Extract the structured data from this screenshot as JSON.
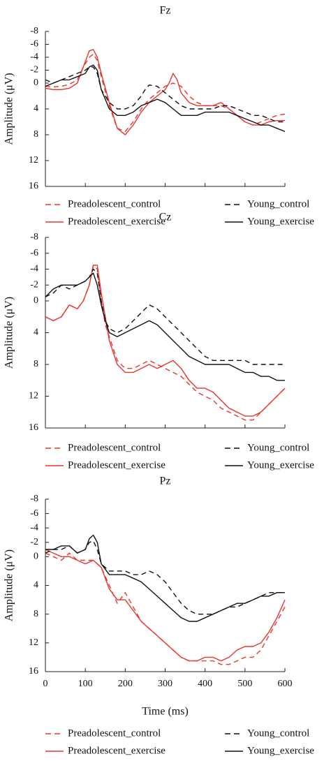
{
  "chart_data": [
    {
      "type": "line",
      "title": "Fz",
      "xlabel": "",
      "ylabel": "Amplitude (μV)",
      "ylim": [
        16,
        -8
      ],
      "y_inverted": true,
      "xlim": [
        0,
        600
      ],
      "yticks": [
        -8,
        -6,
        -4,
        -2,
        0,
        4,
        8,
        12,
        16
      ],
      "xticks": [],
      "series": [
        {
          "name": "Preadolescent_control",
          "color": "#e8352e",
          "dash": "dashed",
          "x": [
            0,
            20,
            40,
            60,
            80,
            95,
            110,
            120,
            130,
            140,
            160,
            180,
            200,
            220,
            240,
            260,
            280,
            300,
            320,
            340,
            360,
            380,
            400,
            420,
            440,
            460,
            480,
            500,
            520,
            540,
            560,
            580,
            600
          ],
          "y": [
            0.5,
            0.6,
            0.5,
            0.2,
            -0.5,
            -2.5,
            -4.0,
            -4.5,
            -3.5,
            -1.0,
            3.5,
            7.0,
            7.5,
            6.0,
            4.0,
            2.5,
            1.5,
            0.5,
            0.0,
            0.5,
            2.0,
            3.0,
            3.5,
            3.5,
            3.5,
            4.0,
            5.0,
            6.0,
            6.5,
            6.0,
            5.5,
            5.0,
            4.8
          ]
        },
        {
          "name": "Preadolescent_exercise",
          "color": "#e8352e",
          "dash": "solid",
          "x": [
            0,
            20,
            40,
            60,
            80,
            95,
            110,
            120,
            130,
            140,
            160,
            180,
            200,
            220,
            240,
            260,
            280,
            300,
            310,
            320,
            330,
            340,
            360,
            380,
            400,
            420,
            440,
            460,
            480,
            500,
            520,
            540,
            560,
            580,
            600
          ],
          "y": [
            0.8,
            1.0,
            1.0,
            0.8,
            0.0,
            -2.5,
            -5.0,
            -5.2,
            -4.0,
            -1.5,
            3.0,
            7.0,
            8.0,
            6.5,
            4.5,
            3.0,
            2.0,
            1.0,
            0.0,
            -1.5,
            -0.5,
            1.5,
            3.0,
            3.5,
            3.5,
            3.5,
            3.0,
            4.0,
            5.0,
            6.0,
            6.5,
            6.5,
            6.0,
            5.8,
            5.8
          ]
        },
        {
          "name": "Young_control",
          "color": "#111111",
          "dash": "dashed",
          "x": [
            0,
            20,
            40,
            60,
            80,
            100,
            110,
            120,
            130,
            140,
            160,
            180,
            200,
            220,
            240,
            250,
            260,
            280,
            300,
            320,
            340,
            360,
            380,
            400,
            420,
            440,
            460,
            480,
            500,
            520,
            540,
            560,
            580,
            600
          ],
          "y": [
            -0.5,
            0.0,
            -0.5,
            -1.0,
            -1.5,
            -2.0,
            -2.5,
            -2.5,
            -1.5,
            1.0,
            3.0,
            4.0,
            4.0,
            3.5,
            2.0,
            1.0,
            0.3,
            0.5,
            1.5,
            2.5,
            3.5,
            4.0,
            4.0,
            4.0,
            4.0,
            3.5,
            3.5,
            4.0,
            4.5,
            5.0,
            5.0,
            5.5,
            6.0,
            6.0
          ]
        },
        {
          "name": "Young_exercise",
          "color": "#111111",
          "dash": "solid",
          "x": [
            0,
            20,
            40,
            60,
            80,
            100,
            110,
            120,
            130,
            140,
            160,
            180,
            200,
            220,
            240,
            260,
            280,
            300,
            320,
            340,
            360,
            380,
            400,
            420,
            440,
            460,
            480,
            500,
            520,
            540,
            560,
            580,
            600
          ],
          "y": [
            0.5,
            0.0,
            -0.5,
            -0.5,
            -1.0,
            -1.5,
            -2.5,
            -2.8,
            -2.0,
            1.0,
            4.0,
            5.0,
            5.0,
            4.5,
            3.5,
            3.0,
            2.5,
            3.0,
            4.0,
            5.0,
            5.0,
            5.0,
            4.5,
            4.5,
            4.5,
            4.5,
            5.0,
            5.5,
            6.0,
            6.5,
            6.5,
            7.0,
            7.5
          ]
        }
      ]
    },
    {
      "type": "line",
      "title": "Cz",
      "xlabel": "",
      "ylabel": "Amplitude (μV)",
      "ylim": [
        16,
        -8
      ],
      "y_inverted": true,
      "xlim": [
        0,
        600
      ],
      "yticks": [
        -8,
        -6,
        -4,
        -2,
        0,
        4,
        8,
        12,
        16
      ],
      "xticks": [],
      "series": [
        {
          "name": "Preadolescent_control",
          "color": "#e8352e",
          "dash": "dashed",
          "x": [
            0,
            20,
            40,
            60,
            80,
            95,
            110,
            120,
            130,
            140,
            150,
            160,
            180,
            200,
            220,
            240,
            260,
            280,
            300,
            320,
            340,
            360,
            380,
            400,
            420,
            440,
            460,
            480,
            500,
            520,
            540,
            560,
            580,
            600
          ],
          "y": [
            2.0,
            2.5,
            2.0,
            0.5,
            1.0,
            0.0,
            -2.0,
            -4.5,
            -4.0,
            0.0,
            3.0,
            4.5,
            7.5,
            8.5,
            8.5,
            8.0,
            7.5,
            8.0,
            8.5,
            9.0,
            9.5,
            10.5,
            11.5,
            12.0,
            12.5,
            13.5,
            14.0,
            14.5,
            15.0,
            15.0,
            14.0,
            13.0,
            12.0,
            11.0
          ]
        },
        {
          "name": "Preadolescent_exercise",
          "color": "#e8352e",
          "dash": "solid",
          "x": [
            0,
            20,
            40,
            60,
            80,
            95,
            110,
            120,
            130,
            140,
            150,
            160,
            180,
            200,
            220,
            240,
            260,
            280,
            300,
            320,
            340,
            360,
            380,
            400,
            420,
            440,
            460,
            480,
            500,
            520,
            540,
            560,
            580,
            600
          ],
          "y": [
            2.0,
            2.5,
            2.0,
            0.5,
            1.0,
            0.0,
            -2.0,
            -4.5,
            -4.5,
            -1.0,
            2.0,
            5.0,
            8.0,
            9.0,
            9.0,
            8.5,
            8.0,
            8.5,
            8.0,
            7.5,
            8.5,
            10.0,
            11.0,
            11.0,
            11.5,
            12.5,
            13.5,
            14.0,
            14.5,
            14.5,
            14.0,
            13.0,
            12.0,
            11.0
          ]
        },
        {
          "name": "Young_control",
          "color": "#111111",
          "dash": "dashed",
          "x": [
            0,
            20,
            40,
            60,
            80,
            100,
            110,
            120,
            130,
            140,
            150,
            160,
            180,
            200,
            220,
            240,
            260,
            280,
            300,
            320,
            340,
            360,
            380,
            400,
            420,
            440,
            460,
            480,
            500,
            520,
            540,
            560,
            580,
            600
          ],
          "y": [
            -0.5,
            -1.0,
            -2.0,
            -1.5,
            -2.0,
            -2.5,
            -3.0,
            -4.0,
            -3.5,
            0.0,
            2.5,
            3.5,
            4.0,
            3.5,
            2.5,
            1.5,
            0.5,
            1.0,
            2.0,
            3.0,
            4.0,
            5.0,
            6.0,
            7.0,
            7.5,
            7.5,
            7.5,
            7.5,
            7.5,
            8.0,
            8.0,
            8.0,
            8.0,
            8.0
          ]
        },
        {
          "name": "Young_exercise",
          "color": "#111111",
          "dash": "solid",
          "x": [
            0,
            20,
            40,
            60,
            80,
            100,
            110,
            120,
            130,
            140,
            150,
            160,
            180,
            200,
            220,
            240,
            260,
            280,
            300,
            320,
            340,
            360,
            380,
            400,
            420,
            440,
            460,
            480,
            500,
            520,
            540,
            560,
            580,
            600
          ],
          "y": [
            -0.5,
            -1.5,
            -2.0,
            -2.0,
            -2.0,
            -2.5,
            -3.0,
            -3.5,
            -2.0,
            0.5,
            2.5,
            4.0,
            4.5,
            4.0,
            3.5,
            3.0,
            2.5,
            3.0,
            4.0,
            5.0,
            6.0,
            7.0,
            7.5,
            8.0,
            8.0,
            8.0,
            8.0,
            8.5,
            9.0,
            9.0,
            9.5,
            9.5,
            10.0,
            10.0
          ]
        }
      ]
    },
    {
      "type": "line",
      "title": "Pz",
      "xlabel": "Time (ms)",
      "ylabel": "Amplitude (μV)",
      "ylim": [
        16,
        -8
      ],
      "y_inverted": true,
      "xlim": [
        0,
        600
      ],
      "yticks": [
        -8,
        -6,
        -4,
        -2,
        0,
        4,
        8,
        12,
        16
      ],
      "xticks": [
        0,
        100,
        200,
        300,
        400,
        500,
        600
      ],
      "series": [
        {
          "name": "Preadolescent_control",
          "color": "#e8352e",
          "dash": "dashed",
          "x": [
            0,
            20,
            40,
            60,
            80,
            100,
            120,
            140,
            160,
            180,
            200,
            220,
            240,
            260,
            280,
            300,
            320,
            340,
            360,
            380,
            400,
            420,
            440,
            460,
            480,
            500,
            520,
            540,
            560,
            580,
            600
          ],
          "y": [
            -0.5,
            0.0,
            0.5,
            -0.5,
            0.5,
            0.5,
            0.5,
            1.5,
            4.0,
            6.5,
            5.0,
            7.0,
            9.0,
            10.0,
            11.0,
            12.0,
            13.0,
            14.0,
            14.5,
            14.5,
            14.5,
            14.5,
            15.0,
            15.0,
            14.5,
            14.0,
            14.0,
            13.0,
            11.0,
            9.0,
            7.0
          ]
        },
        {
          "name": "Preadolescent_exercise",
          "color": "#e8352e",
          "dash": "solid",
          "x": [
            0,
            20,
            40,
            60,
            80,
            100,
            120,
            140,
            160,
            180,
            200,
            220,
            240,
            260,
            280,
            300,
            320,
            340,
            360,
            380,
            400,
            420,
            440,
            460,
            480,
            500,
            520,
            540,
            560,
            580,
            600
          ],
          "y": [
            -1.0,
            -0.5,
            0.0,
            0.0,
            0.5,
            1.0,
            0.5,
            1.5,
            4.5,
            6.0,
            6.0,
            7.5,
            9.0,
            10.0,
            11.0,
            12.0,
            13.0,
            14.0,
            14.5,
            14.5,
            14.0,
            14.0,
            14.5,
            14.0,
            13.0,
            12.5,
            12.5,
            12.0,
            10.5,
            8.5,
            6.0
          ]
        },
        {
          "name": "Young_control",
          "color": "#111111",
          "dash": "dashed",
          "x": [
            0,
            20,
            40,
            60,
            80,
            100,
            110,
            120,
            130,
            140,
            160,
            180,
            200,
            220,
            240,
            260,
            280,
            300,
            320,
            340,
            360,
            380,
            400,
            420,
            440,
            460,
            480,
            500,
            520,
            540,
            560,
            580,
            600
          ],
          "y": [
            -0.5,
            -1.0,
            -1.0,
            -1.5,
            -0.5,
            -1.0,
            -2.0,
            -2.2,
            -1.0,
            1.0,
            2.0,
            2.0,
            2.0,
            2.5,
            2.5,
            2.0,
            2.5,
            3.5,
            5.0,
            6.5,
            7.5,
            8.0,
            8.0,
            8.0,
            7.5,
            7.0,
            7.0,
            6.5,
            6.0,
            5.5,
            5.0,
            5.0,
            5.0
          ]
        },
        {
          "name": "Young_exercise",
          "color": "#111111",
          "dash": "solid",
          "x": [
            0,
            20,
            40,
            60,
            80,
            100,
            110,
            120,
            130,
            140,
            160,
            180,
            200,
            220,
            240,
            260,
            280,
            300,
            320,
            340,
            360,
            380,
            400,
            420,
            440,
            460,
            480,
            500,
            520,
            540,
            560,
            580,
            600
          ],
          "y": [
            -1.0,
            -1.0,
            -1.5,
            -1.5,
            -0.5,
            -1.0,
            -2.5,
            -3.0,
            -2.0,
            1.0,
            2.5,
            2.5,
            2.5,
            3.0,
            3.5,
            4.5,
            5.5,
            6.5,
            7.5,
            8.5,
            9.0,
            9.0,
            8.5,
            8.0,
            7.5,
            7.0,
            6.5,
            6.5,
            6.0,
            5.5,
            5.5,
            5.0,
            5.0
          ]
        }
      ]
    }
  ],
  "legend": {
    "items": [
      {
        "label": "Preadolescent_control",
        "color": "#e8352e",
        "dash": "dashed"
      },
      {
        "label": "Young_control",
        "color": "#111111",
        "dash": "dashed"
      },
      {
        "label": "Preadolescent_exercise",
        "color": "#e8352e",
        "dash": "solid"
      },
      {
        "label": "Young_exercise",
        "color": "#111111",
        "dash": "solid"
      }
    ]
  }
}
